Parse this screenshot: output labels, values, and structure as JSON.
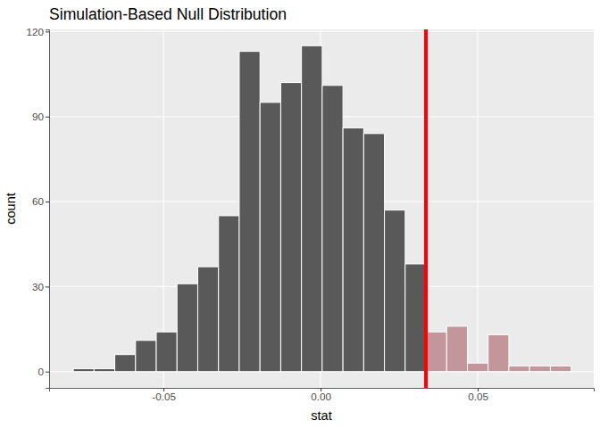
{
  "chart_data": {
    "type": "histogram",
    "title": "Simulation-Based Null Distribution",
    "x_label": "stat",
    "y_label": "count",
    "bins": [
      -0.0787,
      -0.0721,
      -0.0655,
      -0.0589,
      -0.0523,
      -0.0457,
      -0.0391,
      -0.0325,
      -0.0259,
      -0.0193,
      -0.0127,
      -0.0061,
      0.0005,
      0.0071,
      0.0137,
      0.0203,
      0.0269,
      0.0335,
      0.0401,
      0.0467,
      0.0533,
      0.0599,
      0.0665,
      0.0731,
      0.0797
    ],
    "values": [
      1,
      1,
      6,
      11,
      14,
      31,
      37,
      55,
      113,
      95,
      102,
      115,
      101,
      86,
      84,
      57,
      38,
      14,
      16,
      3,
      13,
      2,
      2,
      2
    ],
    "colors": [
      "#595959",
      "#595959",
      "#595959",
      "#595959",
      "#595959",
      "#595959",
      "#595959",
      "#595959",
      "#595959",
      "#595959",
      "#595959",
      "#595959",
      "#595959",
      "#595959",
      "#595959",
      "#595959",
      "#595959",
      "#c3969b",
      "#c3969b",
      "#c3969b",
      "#c3969b",
      "#c3969b",
      "#c3969b",
      "#c3969b"
    ],
    "obs_stat": 0.0335,
    "xlim": [
      -0.0864,
      0.0869
    ],
    "xticks": [
      {
        "value": -0.05,
        "label": "-0.05"
      },
      {
        "value": 0,
        "label": "0.00"
      },
      {
        "value": 0.05,
        "label": "0.05"
      }
    ],
    "ylim": [
      -5.75,
      120.75
    ],
    "yticks": [
      0,
      30,
      60,
      90,
      120
    ],
    "grid": true
  }
}
